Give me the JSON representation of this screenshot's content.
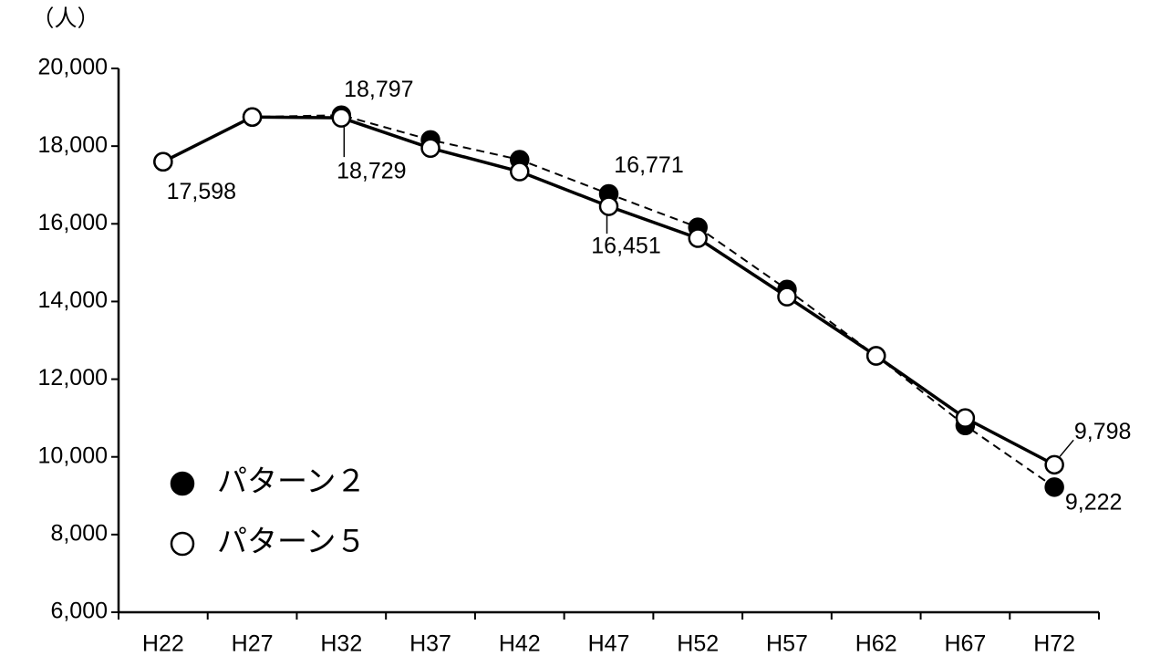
{
  "chart_data": {
    "type": "line",
    "y_label": "（人）",
    "categories": [
      "H22",
      "H27",
      "H32",
      "H37",
      "H42",
      "H47",
      "H52",
      "H57",
      "H62",
      "H67",
      "H72"
    ],
    "ylim": [
      6000,
      20000
    ],
    "yticks": [
      {
        "value": 6000,
        "label": "6,000"
      },
      {
        "value": 8000,
        "label": "8,000"
      },
      {
        "value": 10000,
        "label": "10,000"
      },
      {
        "value": 12000,
        "label": "12,000"
      },
      {
        "value": 14000,
        "label": "14,000"
      },
      {
        "value": 16000,
        "label": "16,000"
      },
      {
        "value": 18000,
        "label": "18,000"
      },
      {
        "value": 20000,
        "label": "20,000"
      }
    ],
    "legend": "lower left",
    "series": [
      {
        "name": "パターン２",
        "color": "#000000",
        "marker_fill": "#000000",
        "line_style": "dashed",
        "values": [
          17598,
          18750,
          18797,
          18160,
          17650,
          16771,
          15910,
          14310,
          12600,
          10810,
          9222
        ],
        "value_labels": [
          null,
          null,
          "18,797",
          null,
          null,
          "16,771",
          null,
          null,
          null,
          null,
          "9,222"
        ]
      },
      {
        "name": "パターン５",
        "color": "#000000",
        "marker_fill": "#ffffff",
        "line_style": "solid",
        "values": [
          17598,
          18750,
          18729,
          17950,
          17345,
          16451,
          15630,
          14125,
          12600,
          11000,
          9798
        ],
        "value_labels": [
          "17,598",
          null,
          "18,729",
          null,
          null,
          "16,451",
          null,
          null,
          null,
          null,
          "9,798"
        ]
      }
    ]
  }
}
